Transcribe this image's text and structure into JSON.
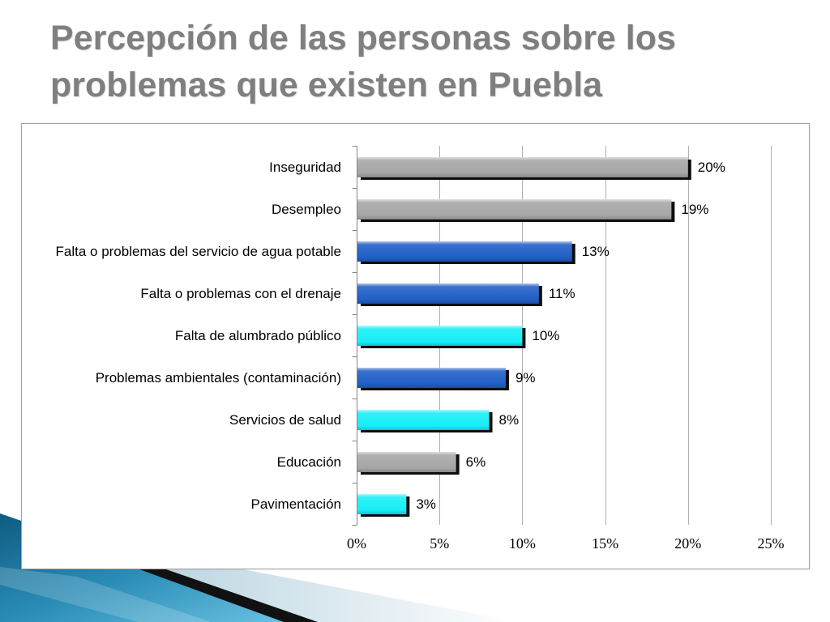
{
  "colors": {
    "title": "#7f7f7f",
    "axis": "#868686",
    "gridline": "#b0b0b0",
    "text": "#000000",
    "bar_shadow": "#0d0d0d"
  },
  "chart_data": {
    "type": "bar",
    "orientation": "horizontal",
    "title": "Percepción de las personas sobre los problemas que existen en Puebla",
    "xlabel": "",
    "ylabel": "",
    "categories": [
      "Inseguridad",
      "Desempleo",
      "Falta o problemas del servicio de agua potable",
      "Falta o problemas con el drenaje",
      "Falta de alumbrado público",
      "Problemas ambientales (contaminación)",
      "Servicios de salud",
      "Educación",
      "Pavimentación"
    ],
    "values": [
      20,
      19,
      13,
      11,
      10,
      9,
      8,
      6,
      3
    ],
    "data_labels": [
      "20%",
      "19%",
      "13%",
      "11%",
      "10%",
      "9%",
      "8%",
      "6%",
      "3%"
    ],
    "bar_colors": [
      "#a6a6a6",
      "#a6a6a6",
      "#1f5fc6",
      "#1f5fc6",
      "#16eef6",
      "#1f5fc6",
      "#16eef6",
      "#a6a6a6",
      "#16eef6"
    ],
    "xlim": [
      0,
      25
    ],
    "x_ticks": [
      0,
      5,
      10,
      15,
      20,
      25
    ],
    "x_tick_labels": [
      "0%",
      "5%",
      "10%",
      "15%",
      "20%",
      "25%"
    ],
    "grid": true,
    "legend": "none"
  }
}
